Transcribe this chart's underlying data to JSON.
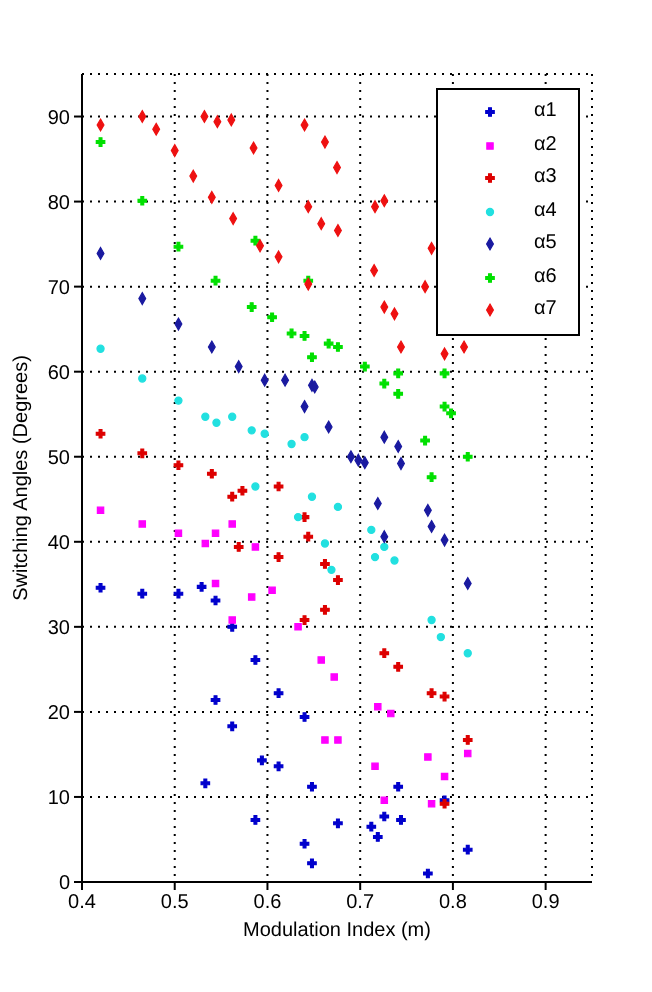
{
  "chart_data": {
    "type": "scatter",
    "xlabel": "Modulation Index (m)",
    "ylabel": "Switching Angles (Degrees)",
    "xlim": [
      0.4,
      0.95
    ],
    "xticks": [
      0.4,
      0.5,
      0.6,
      0.7,
      0.8,
      0.9
    ],
    "ylim": [
      0,
      95
    ],
    "yticks": [
      0,
      10,
      20,
      30,
      40,
      50,
      60,
      70,
      80,
      90
    ],
    "grid": true,
    "legend": "top right",
    "series": [
      {
        "name": "α1",
        "color": "#0000cc",
        "marker": "cross",
        "x": [
          0.42,
          0.465,
          0.504,
          0.529,
          0.544,
          0.562,
          0.587,
          0.544,
          0.562,
          0.612,
          0.64,
          0.594,
          0.612,
          0.533,
          0.587,
          0.64,
          0.648,
          0.648,
          0.676,
          0.712,
          0.726,
          0.741,
          0.719,
          0.744,
          0.773,
          0.791,
          0.816
        ],
        "values": [
          34.6,
          33.9,
          33.9,
          34.7,
          33.1,
          30,
          26.1,
          21.4,
          18.3,
          22.2,
          19.4,
          14.3,
          13.6,
          11.6,
          7.3,
          4.5,
          2.2,
          11.2,
          6.9,
          6.5,
          7.7,
          11.2,
          5.3,
          7.3,
          1,
          9.6,
          3.8
        ]
      },
      {
        "name": "α2",
        "color": "#ff00ff",
        "marker": "square",
        "x": [
          0.42,
          0.465,
          0.504,
          0.533,
          0.544,
          0.562,
          0.587,
          0.544,
          0.562,
          0.583,
          0.605,
          0.633,
          0.658,
          0.672,
          0.719,
          0.733,
          0.773,
          0.662,
          0.676,
          0.791,
          0.816,
          0.716,
          0.726,
          0.777
        ],
        "values": [
          43.7,
          42.1,
          41,
          39.8,
          41,
          42.1,
          39.4,
          35.1,
          30.8,
          33.5,
          34.3,
          30,
          26.1,
          24.1,
          20.6,
          19.8,
          14.7,
          16.7,
          16.7,
          12.4,
          15.1,
          13.6,
          9.6,
          9.2
        ]
      },
      {
        "name": "α3",
        "color": "#dd0000",
        "marker": "cross",
        "x": [
          0.42,
          0.465,
          0.504,
          0.54,
          0.562,
          0.573,
          0.612,
          0.64,
          0.569,
          0.612,
          0.644,
          0.662,
          0.662,
          0.676,
          0.726,
          0.741,
          0.777,
          0.791,
          0.816,
          0.64,
          0.791
        ],
        "values": [
          52.7,
          50.4,
          49,
          48,
          45.3,
          46,
          46.5,
          42.9,
          39.4,
          38.2,
          40.6,
          37.4,
          32,
          35.5,
          26.9,
          25.3,
          22.2,
          21.8,
          16.7,
          30.8,
          9.2
        ]
      },
      {
        "name": "α4",
        "color": "#22e0e0",
        "marker": "circle",
        "x": [
          0.42,
          0.465,
          0.504,
          0.533,
          0.545,
          0.562,
          0.583,
          0.597,
          0.626,
          0.64,
          0.587,
          0.633,
          0.648,
          0.676,
          0.712,
          0.662,
          0.669,
          0.716,
          0.726,
          0.737,
          0.777,
          0.787,
          0.816
        ],
        "values": [
          62.7,
          59.2,
          56.6,
          54.7,
          54,
          54.7,
          53.1,
          52.7,
          51.5,
          52.3,
          46.5,
          42.9,
          45.3,
          44.1,
          41.4,
          39.8,
          36.7,
          38.2,
          39.4,
          37.8,
          30.8,
          28.8,
          26.9
        ]
      },
      {
        "name": "α5",
        "color": "#1a1aa0",
        "marker": "diamond",
        "x": [
          0.42,
          0.465,
          0.504,
          0.54,
          0.569,
          0.597,
          0.619,
          0.64,
          0.648,
          0.666,
          0.69,
          0.705,
          0.651,
          0.698,
          0.726,
          0.741,
          0.744,
          0.773,
          0.719,
          0.726,
          0.791,
          0.816,
          0.777
        ],
        "values": [
          73.9,
          68.6,
          65.6,
          62.9,
          60.6,
          59,
          59,
          55.9,
          58.4,
          53.5,
          50,
          49.3,
          58.2,
          49.6,
          52.3,
          51.2,
          49.2,
          43.7,
          44.5,
          40.6,
          40.2,
          35.1,
          41.8
        ]
      },
      {
        "name": "α6",
        "color": "#00e000",
        "marker": "cross",
        "x": [
          0.42,
          0.465,
          0.504,
          0.544,
          0.583,
          0.605,
          0.626,
          0.64,
          0.587,
          0.644,
          0.648,
          0.666,
          0.676,
          0.705,
          0.726,
          0.741,
          0.741,
          0.77,
          0.791,
          0.791,
          0.798,
          0.816,
          0.777
        ],
        "values": [
          87,
          80.1,
          74.7,
          70.7,
          67.6,
          66.4,
          64.5,
          64.2,
          75.4,
          70.7,
          61.7,
          63.3,
          62.9,
          60.6,
          58.6,
          59.8,
          57.4,
          51.9,
          59.8,
          55.9,
          55.1,
          50,
          47.6
        ]
      },
      {
        "name": "α7",
        "color": "#ee1111",
        "marker": "diamond",
        "x": [
          0.42,
          0.465,
          0.48,
          0.5,
          0.52,
          0.54,
          0.532,
          0.546,
          0.561,
          0.585,
          0.612,
          0.64,
          0.662,
          0.675,
          0.563,
          0.592,
          0.612,
          0.644,
          0.644,
          0.658,
          0.676,
          0.715,
          0.716,
          0.726,
          0.777,
          0.726,
          0.77,
          0.737,
          0.744,
          0.791,
          0.812
        ],
        "values": [
          89,
          90,
          88.5,
          86,
          83,
          80.5,
          90,
          89.4,
          89.6,
          86.3,
          81.9,
          89,
          87,
          84,
          78,
          74.8,
          73.5,
          70.3,
          79.4,
          77.4,
          76.6,
          71.9,
          79.4,
          80.1,
          74.5,
          67.6,
          70,
          66.8,
          62.9,
          62.1,
          62.9
        ]
      }
    ]
  }
}
